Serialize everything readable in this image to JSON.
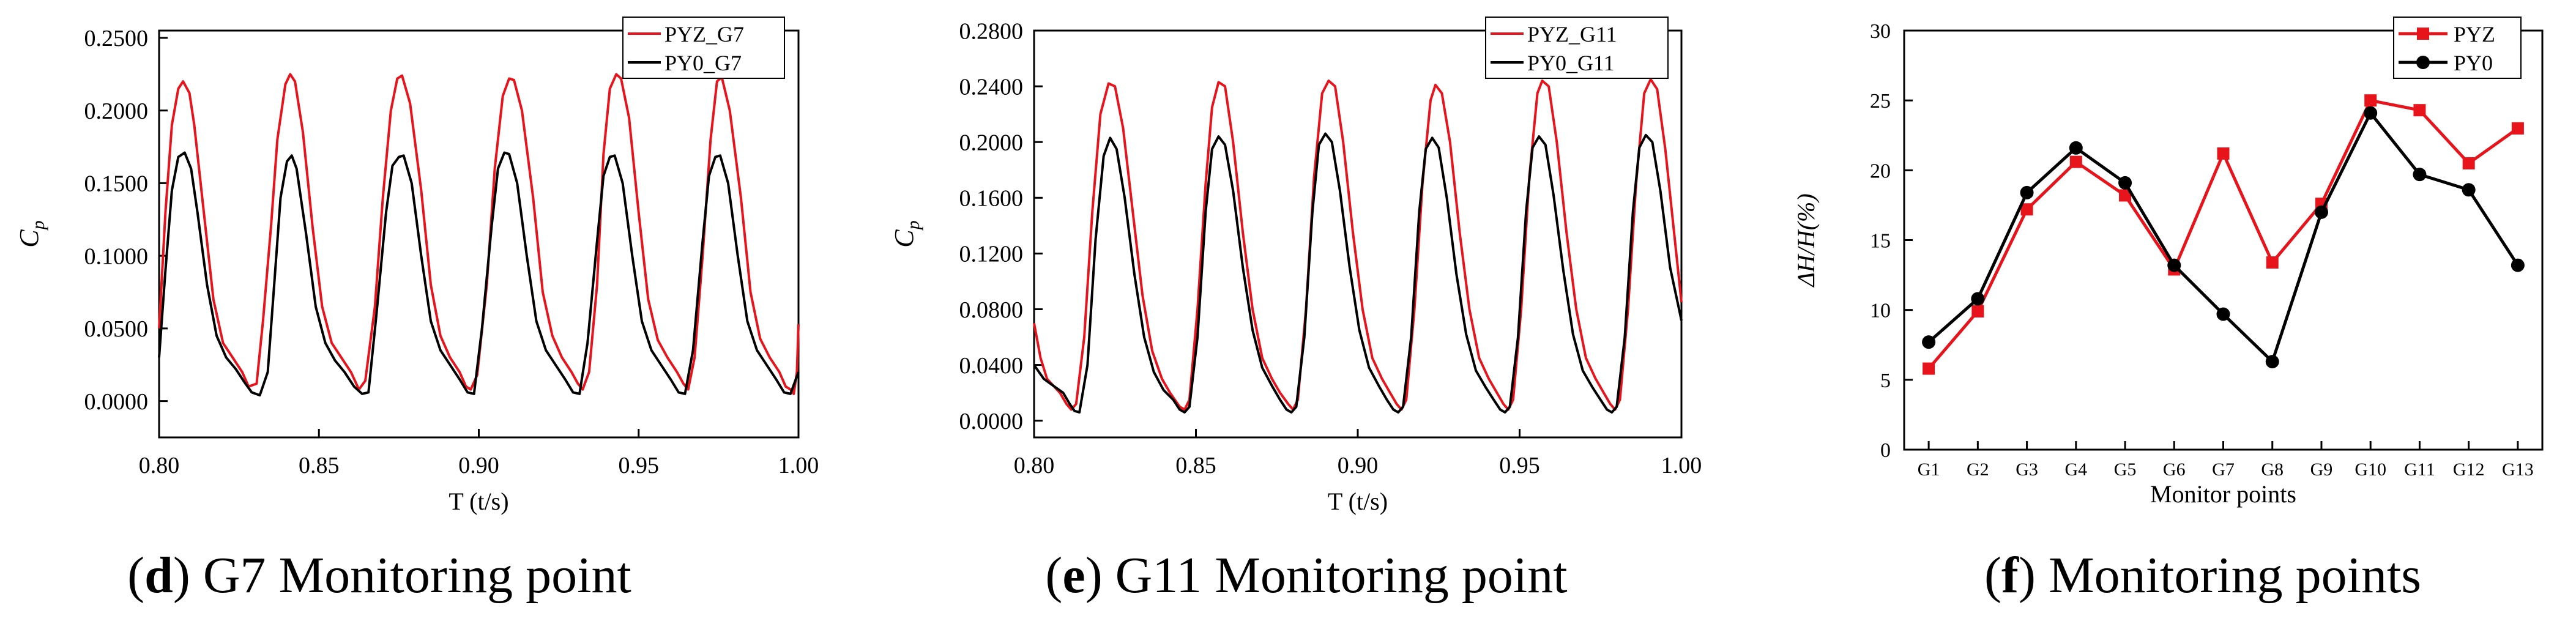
{
  "chart_data": [
    {
      "type": "line",
      "panel_letter": "d",
      "caption": " G7 Monitoring point",
      "xlabel": "T (t/s)",
      "ylabel": "C",
      "ylabel_sub": "p",
      "xlim": [
        0.8,
        1.0
      ],
      "ylim": [
        -0.025,
        0.255
      ],
      "xticks": [
        0.8,
        0.85,
        0.9,
        0.95,
        1.0
      ],
      "xtick_labels": [
        "0.80",
        "0.85",
        "0.90",
        "0.95",
        "1.00"
      ],
      "yticks": [
        0.0,
        0.05,
        0.1,
        0.15,
        0.2,
        0.25
      ],
      "ytick_labels": [
        "0.0000",
        "0.0500",
        "0.1000",
        "0.1500",
        "0.2000",
        "0.2500"
      ],
      "legend_position": "top-right",
      "series": [
        {
          "name": "PYZ_G7",
          "color": "#e8141c",
          "x": [
            0.8,
            0.802,
            0.804,
            0.806,
            0.8075,
            0.8095,
            0.811,
            0.814,
            0.817,
            0.82,
            0.823,
            0.826,
            0.828,
            0.8305,
            0.8325,
            0.835,
            0.837,
            0.8395,
            0.841,
            0.8425,
            0.845,
            0.848,
            0.851,
            0.854,
            0.857,
            0.86,
            0.8625,
            0.8645,
            0.8675,
            0.87,
            0.8725,
            0.8745,
            0.876,
            0.8785,
            0.882,
            0.885,
            0.888,
            0.891,
            0.894,
            0.896,
            0.8975,
            0.8995,
            0.9025,
            0.905,
            0.9075,
            0.9095,
            0.911,
            0.9135,
            0.917,
            0.92,
            0.923,
            0.926,
            0.929,
            0.931,
            0.9325,
            0.9345,
            0.937,
            0.939,
            0.941,
            0.943,
            0.9445,
            0.947,
            0.95,
            0.953,
            0.956,
            0.959,
            0.962,
            0.964,
            0.9655,
            0.9675,
            0.97,
            0.9725,
            0.9745,
            0.976,
            0.9785,
            0.982,
            0.985,
            0.988,
            0.991,
            0.994,
            0.996,
            0.9975,
            0.9985,
            0.9995,
            1.0
          ],
          "y": [
            0.05,
            0.13,
            0.19,
            0.215,
            0.22,
            0.212,
            0.19,
            0.13,
            0.07,
            0.04,
            0.03,
            0.02,
            0.01,
            0.012,
            0.055,
            0.12,
            0.18,
            0.218,
            0.225,
            0.22,
            0.185,
            0.12,
            0.065,
            0.04,
            0.03,
            0.02,
            0.008,
            0.014,
            0.065,
            0.14,
            0.2,
            0.222,
            0.224,
            0.205,
            0.145,
            0.08,
            0.045,
            0.03,
            0.02,
            0.01,
            0.008,
            0.018,
            0.08,
            0.16,
            0.21,
            0.222,
            0.221,
            0.2,
            0.14,
            0.075,
            0.045,
            0.03,
            0.02,
            0.012,
            0.008,
            0.02,
            0.08,
            0.17,
            0.215,
            0.225,
            0.222,
            0.195,
            0.13,
            0.07,
            0.042,
            0.03,
            0.02,
            0.012,
            0.008,
            0.03,
            0.1,
            0.18,
            0.22,
            0.223,
            0.2,
            0.14,
            0.075,
            0.043,
            0.03,
            0.02,
            0.01,
            0.008,
            0.005,
            0.02,
            0.053
          ]
        },
        {
          "name": "PY0_G7",
          "color": "#000000",
          "x": [
            0.8,
            0.802,
            0.804,
            0.806,
            0.808,
            0.81,
            0.812,
            0.815,
            0.818,
            0.821,
            0.824,
            0.827,
            0.829,
            0.8315,
            0.834,
            0.836,
            0.838,
            0.84,
            0.8415,
            0.843,
            0.846,
            0.849,
            0.852,
            0.855,
            0.858,
            0.861,
            0.8635,
            0.8655,
            0.868,
            0.871,
            0.873,
            0.875,
            0.8765,
            0.879,
            0.882,
            0.885,
            0.888,
            0.891,
            0.894,
            0.8965,
            0.8985,
            0.901,
            0.904,
            0.906,
            0.908,
            0.9095,
            0.912,
            0.915,
            0.918,
            0.921,
            0.924,
            0.927,
            0.9295,
            0.9315,
            0.934,
            0.937,
            0.939,
            0.941,
            0.9425,
            0.945,
            0.948,
            0.951,
            0.954,
            0.957,
            0.96,
            0.9625,
            0.9645,
            0.967,
            0.97,
            0.972,
            0.974,
            0.9755,
            0.978,
            0.981,
            0.984,
            0.987,
            0.99,
            0.993,
            0.9955,
            0.9975,
            1.0
          ],
          "y": [
            0.03,
            0.09,
            0.145,
            0.168,
            0.171,
            0.16,
            0.13,
            0.08,
            0.045,
            0.03,
            0.022,
            0.012,
            0.006,
            0.004,
            0.02,
            0.08,
            0.14,
            0.165,
            0.169,
            0.16,
            0.115,
            0.065,
            0.04,
            0.028,
            0.02,
            0.01,
            0.005,
            0.006,
            0.06,
            0.13,
            0.162,
            0.168,
            0.169,
            0.15,
            0.1,
            0.055,
            0.035,
            0.025,
            0.015,
            0.006,
            0.005,
            0.05,
            0.12,
            0.16,
            0.171,
            0.17,
            0.15,
            0.1,
            0.055,
            0.035,
            0.025,
            0.015,
            0.006,
            0.005,
            0.04,
            0.11,
            0.155,
            0.168,
            0.169,
            0.15,
            0.1,
            0.055,
            0.035,
            0.025,
            0.015,
            0.006,
            0.005,
            0.035,
            0.11,
            0.155,
            0.168,
            0.169,
            0.15,
            0.1,
            0.055,
            0.035,
            0.025,
            0.015,
            0.006,
            0.005,
            0.02
          ]
        }
      ]
    },
    {
      "type": "line",
      "panel_letter": "e",
      "caption": " G11 Monitoring point",
      "xlabel": "T (t/s)",
      "ylabel": "C",
      "ylabel_sub": "p",
      "xlim": [
        0.8,
        1.0
      ],
      "ylim": [
        -0.012,
        0.28
      ],
      "xticks": [
        0.8,
        0.85,
        0.9,
        0.95,
        1.0
      ],
      "xtick_labels": [
        "0.80",
        "0.85",
        "0.90",
        "0.95",
        "1.00"
      ],
      "yticks": [
        0.0,
        0.04,
        0.08,
        0.12,
        0.16,
        0.2,
        0.24,
        0.28
      ],
      "ytick_labels": [
        "0.0000",
        "0.0400",
        "0.0800",
        "0.1200",
        "0.1600",
        "0.2000",
        "0.2400",
        "0.2800"
      ],
      "legend_position": "top-right",
      "series": [
        {
          "name": "PYZ_G11",
          "color": "#e8141c",
          "x": [
            0.8,
            0.802,
            0.804,
            0.806,
            0.808,
            0.81,
            0.8115,
            0.813,
            0.8155,
            0.818,
            0.8205,
            0.823,
            0.825,
            0.8275,
            0.8305,
            0.8335,
            0.8365,
            0.8395,
            0.842,
            0.845,
            0.8465,
            0.848,
            0.8505,
            0.853,
            0.855,
            0.857,
            0.859,
            0.8615,
            0.8645,
            0.8675,
            0.8705,
            0.8735,
            0.876,
            0.8785,
            0.88,
            0.8815,
            0.884,
            0.8865,
            0.889,
            0.891,
            0.893,
            0.8955,
            0.8985,
            0.9015,
            0.9045,
            0.9075,
            0.91,
            0.912,
            0.9135,
            0.915,
            0.9175,
            0.92,
            0.9225,
            0.924,
            0.926,
            0.9285,
            0.9315,
            0.9345,
            0.9375,
            0.9405,
            0.943,
            0.945,
            0.9465,
            0.948,
            0.9505,
            0.953,
            0.9555,
            0.957,
            0.959,
            0.9615,
            0.9645,
            0.9675,
            0.9705,
            0.9735,
            0.976,
            0.978,
            0.9795,
            0.981,
            0.9835,
            0.986,
            0.9885,
            0.9905,
            0.9925,
            0.995,
            0.9975,
            1.0
          ],
          "y": [
            0.07,
            0.045,
            0.03,
            0.025,
            0.02,
            0.012,
            0.008,
            0.012,
            0.06,
            0.15,
            0.22,
            0.242,
            0.24,
            0.21,
            0.15,
            0.09,
            0.05,
            0.03,
            0.02,
            0.01,
            0.008,
            0.015,
            0.08,
            0.17,
            0.225,
            0.243,
            0.24,
            0.2,
            0.135,
            0.08,
            0.045,
            0.03,
            0.02,
            0.012,
            0.008,
            0.015,
            0.08,
            0.175,
            0.235,
            0.244,
            0.24,
            0.2,
            0.135,
            0.08,
            0.045,
            0.03,
            0.02,
            0.012,
            0.008,
            0.015,
            0.08,
            0.17,
            0.23,
            0.241,
            0.235,
            0.2,
            0.135,
            0.08,
            0.045,
            0.03,
            0.02,
            0.012,
            0.008,
            0.015,
            0.08,
            0.175,
            0.235,
            0.244,
            0.24,
            0.2,
            0.135,
            0.08,
            0.045,
            0.03,
            0.02,
            0.012,
            0.008,
            0.015,
            0.08,
            0.17,
            0.235,
            0.245,
            0.238,
            0.195,
            0.14,
            0.085
          ]
        },
        {
          "name": "PY0_G11",
          "color": "#000000",
          "x": [
            0.8,
            0.803,
            0.806,
            0.809,
            0.811,
            0.8125,
            0.814,
            0.8165,
            0.819,
            0.8215,
            0.8235,
            0.8255,
            0.828,
            0.831,
            0.834,
            0.837,
            0.84,
            0.843,
            0.845,
            0.8465,
            0.848,
            0.8505,
            0.853,
            0.855,
            0.857,
            0.859,
            0.8615,
            0.8645,
            0.8675,
            0.8705,
            0.8735,
            0.876,
            0.878,
            0.8795,
            0.881,
            0.8835,
            0.886,
            0.888,
            0.89,
            0.892,
            0.8945,
            0.8975,
            0.9005,
            0.9035,
            0.9065,
            0.909,
            0.911,
            0.9125,
            0.914,
            0.9165,
            0.919,
            0.921,
            0.923,
            0.925,
            0.9275,
            0.9305,
            0.9335,
            0.9365,
            0.9395,
            0.942,
            0.944,
            0.9455,
            0.947,
            0.9495,
            0.952,
            0.954,
            0.956,
            0.958,
            0.9605,
            0.9635,
            0.9665,
            0.9695,
            0.9725,
            0.975,
            0.977,
            0.9785,
            0.98,
            0.9825,
            0.985,
            0.987,
            0.989,
            0.991,
            0.9935,
            0.9965,
            1.0
          ],
          "y": [
            0.04,
            0.03,
            0.025,
            0.02,
            0.012,
            0.007,
            0.006,
            0.04,
            0.13,
            0.19,
            0.203,
            0.195,
            0.16,
            0.105,
            0.06,
            0.035,
            0.022,
            0.015,
            0.008,
            0.006,
            0.01,
            0.06,
            0.15,
            0.195,
            0.204,
            0.198,
            0.165,
            0.11,
            0.065,
            0.038,
            0.025,
            0.015,
            0.008,
            0.006,
            0.01,
            0.06,
            0.15,
            0.198,
            0.206,
            0.2,
            0.165,
            0.11,
            0.065,
            0.038,
            0.025,
            0.015,
            0.008,
            0.006,
            0.01,
            0.06,
            0.15,
            0.195,
            0.203,
            0.196,
            0.16,
            0.105,
            0.062,
            0.036,
            0.024,
            0.015,
            0.008,
            0.006,
            0.01,
            0.06,
            0.15,
            0.196,
            0.204,
            0.198,
            0.162,
            0.108,
            0.062,
            0.036,
            0.024,
            0.015,
            0.008,
            0.006,
            0.01,
            0.06,
            0.15,
            0.196,
            0.205,
            0.2,
            0.165,
            0.11,
            0.072
          ]
        }
      ]
    },
    {
      "type": "line",
      "panel_letter": "f",
      "caption": " Monitoring points",
      "xlabel": "Monitor points",
      "ylabel": "ΔH/H(%)",
      "categories": [
        "G1",
        "G2",
        "G3",
        "G4",
        "G5",
        "G6",
        "G7",
        "G8",
        "G9",
        "G10",
        "G11",
        "G12",
        "G13"
      ],
      "ylim": [
        0,
        30
      ],
      "yticks": [
        0,
        5,
        10,
        15,
        20,
        25,
        30
      ],
      "ytick_labels": [
        "0",
        "5",
        "10",
        "15",
        "20",
        "25",
        "30"
      ],
      "legend_position": "top-right",
      "series": [
        {
          "name": "PYZ",
          "color": "#e8141c",
          "marker": "square",
          "values": [
            5.8,
            9.9,
            17.2,
            20.6,
            18.2,
            12.9,
            21.2,
            13.4,
            17.6,
            25.0,
            24.3,
            20.5,
            23.0
          ]
        },
        {
          "name": "PY0",
          "color": "#000000",
          "marker": "circle",
          "values": [
            7.7,
            10.8,
            18.4,
            21.6,
            19.1,
            13.2,
            9.7,
            6.3,
            17.0,
            24.1,
            19.7,
            18.6,
            13.2
          ]
        }
      ]
    }
  ]
}
